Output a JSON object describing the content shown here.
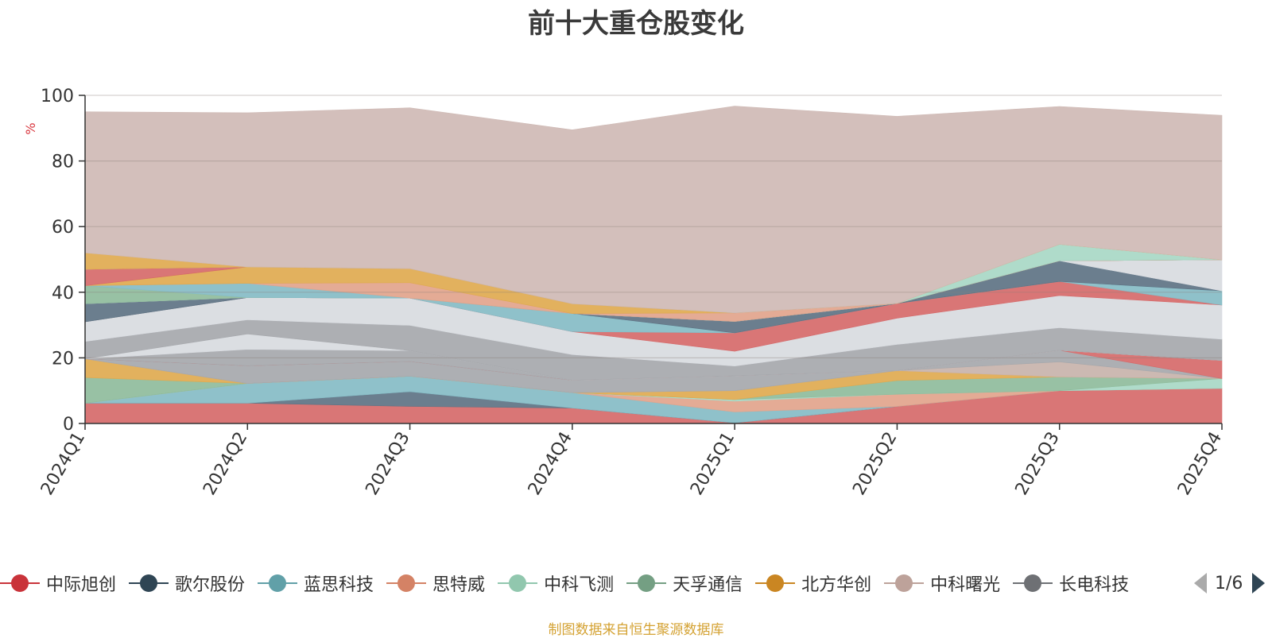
{
  "chart_data": {
    "type": "area",
    "title": "前十大重仓股变化",
    "ylabel": "%",
    "ylim": [
      0,
      100
    ],
    "yticks": [
      "0",
      "20",
      "40",
      "60",
      "80",
      "100"
    ],
    "stacked": true,
    "categories": [
      "2024Q1",
      "2024Q2",
      "2024Q3",
      "2024Q4",
      "2025Q1",
      "2025Q2",
      "2025Q3",
      "2025Q4"
    ],
    "series": [
      {
        "name": "中际旭创",
        "color": "#d66a6a",
        "values": [
          6.2,
          6.2,
          5.2,
          4.7,
          0.2,
          5.2,
          10.0,
          10.7
        ]
      },
      {
        "name": "歌尔股份",
        "color": "#5e7384",
        "values": [
          0.0,
          0.0,
          4.5,
          0.0,
          0.0,
          0.0,
          0.0,
          0.0
        ]
      },
      {
        "name": "蓝思科技",
        "color": "#86bcc6",
        "values": [
          0.0,
          6.0,
          4.7,
          4.7,
          3.3,
          0.0,
          0.0,
          0.0
        ]
      },
      {
        "name": "思特威",
        "color": "#e2a48c",
        "values": [
          0.0,
          0.0,
          0.0,
          0.0,
          3.3,
          3.7,
          0.0,
          0.0
        ]
      },
      {
        "name": "中科飞测",
        "color": "#a8d8c5",
        "values": [
          0.0,
          0.0,
          0.0,
          0.0,
          0.5,
          0.0,
          0.0,
          3.0
        ]
      },
      {
        "name": "天孚通信",
        "color": "#8fbc9c",
        "values": [
          7.8,
          0.0,
          0.0,
          0.0,
          0.0,
          4.2,
          4.2,
          0.0
        ]
      },
      {
        "name": "北方华创",
        "color": "#e0aa50",
        "values": [
          5.7,
          0.0,
          0.0,
          0.0,
          2.7,
          3.0,
          0.0,
          0.0
        ]
      },
      {
        "name": "中科曙光",
        "color": "#c8b3ab",
        "values": [
          0.0,
          0.0,
          0.0,
          0.0,
          0.0,
          0.0,
          4.6,
          0.0
        ]
      },
      {
        "name": "长电科技",
        "color": "#a6a8ac",
        "values": [
          0.0,
          5.4,
          4.5,
          3.8,
          4.5,
          0.0,
          3.5,
          0.0
        ]
      },
      {
        "name": "",
        "color": "#d66a6a",
        "values": [
          0.0,
          0.0,
          0.0,
          0.0,
          0.0,
          0.0,
          0.0,
          5.5
        ]
      },
      {
        "name": "",
        "color": "#a6a8ac",
        "values": [
          0.0,
          5.0,
          3.3,
          0.0,
          0.0,
          0.0,
          0.0,
          0.0
        ]
      },
      {
        "name": "",
        "color": "#d8dbe0",
        "values": [
          0.0,
          4.7,
          0.0,
          0.0,
          0.0,
          0.0,
          0.0,
          0.0
        ]
      },
      {
        "name": "",
        "color": "#a6a8ac",
        "values": [
          5.3,
          4.3,
          7.7,
          7.8,
          3.0,
          8.0,
          6.9,
          6.5
        ]
      },
      {
        "name": "",
        "color": "#d8dbe0",
        "values": [
          6.0,
          6.8,
          8.3,
          7.0,
          4.5,
          8.0,
          9.8,
          10.4
        ]
      },
      {
        "name": "",
        "color": "#d66a6a",
        "values": [
          0.0,
          0.0,
          0.0,
          0.0,
          5.6,
          4.5,
          4.3,
          0.0
        ]
      },
      {
        "name": "",
        "color": "#86bcc6",
        "values": [
          0.0,
          0.0,
          0.0,
          5.5,
          0.0,
          0.0,
          0.0,
          4.3
        ]
      },
      {
        "name": "",
        "color": "#5e7384",
        "values": [
          5.5,
          0.0,
          0.0,
          0.0,
          3.5,
          0.0,
          6.3,
          0.0
        ]
      },
      {
        "name": "",
        "color": "#d8dbe0",
        "values": [
          0.0,
          0.0,
          0.0,
          0.0,
          0.0,
          0.0,
          0.0,
          9.5
        ]
      },
      {
        "name": "",
        "color": "#8fbc9c",
        "values": [
          5.5,
          0.0,
          0.0,
          0.0,
          0.0,
          0.0,
          0.0,
          0.0
        ]
      },
      {
        "name": "",
        "color": "#86bcc6",
        "values": [
          0.0,
          4.3,
          0.0,
          0.0,
          0.0,
          0.0,
          0.0,
          0.0
        ]
      },
      {
        "name": "",
        "color": "#e2a48c",
        "values": [
          0.0,
          0.0,
          4.7,
          0.0,
          2.6,
          0.0,
          0.0,
          0.0
        ]
      },
      {
        "name": "",
        "color": "#e0aa50",
        "values": [
          0.0,
          5.0,
          4.3,
          3.0,
          0.0,
          0.0,
          0.0,
          0.0
        ]
      },
      {
        "name": "",
        "color": "#d66a6a",
        "values": [
          5.0,
          0.0,
          0.0,
          0.0,
          0.0,
          0.0,
          0.0,
          0.0
        ]
      },
      {
        "name": "",
        "color": "#a8d8c5",
        "values": [
          0.0,
          0.0,
          0.0,
          0.0,
          0.0,
          0.0,
          5.0,
          0.0
        ]
      },
      {
        "name": "",
        "color": "#e0aa50",
        "values": [
          5.0,
          0.0,
          0.0,
          0.0,
          0.0,
          0.0,
          0.0,
          0.0
        ]
      },
      {
        "name": "",
        "color": "#cfbab5",
        "values": [
          43.0,
          47.0,
          49.0,
          53.0,
          63.0,
          57.0,
          42.0,
          44.0
        ]
      }
    ]
  },
  "legend": {
    "items": [
      {
        "label": "中际旭创",
        "color": "#c9333a"
      },
      {
        "label": "歌尔股份",
        "color": "#2f4554"
      },
      {
        "label": "蓝思科技",
        "color": "#61a0a8"
      },
      {
        "label": "思特威",
        "color": "#d48265"
      },
      {
        "label": "中科飞测",
        "color": "#91c7ae"
      },
      {
        "label": "天孚通信",
        "color": "#749f83"
      },
      {
        "label": "北方华创",
        "color": "#ca8622"
      },
      {
        "label": "中科曙光",
        "color": "#bda29a"
      },
      {
        "label": "长电科技",
        "color": "#6e7074"
      }
    ],
    "page_text": "1/6"
  },
  "footer": "制图数据来自恒生聚源数据库"
}
